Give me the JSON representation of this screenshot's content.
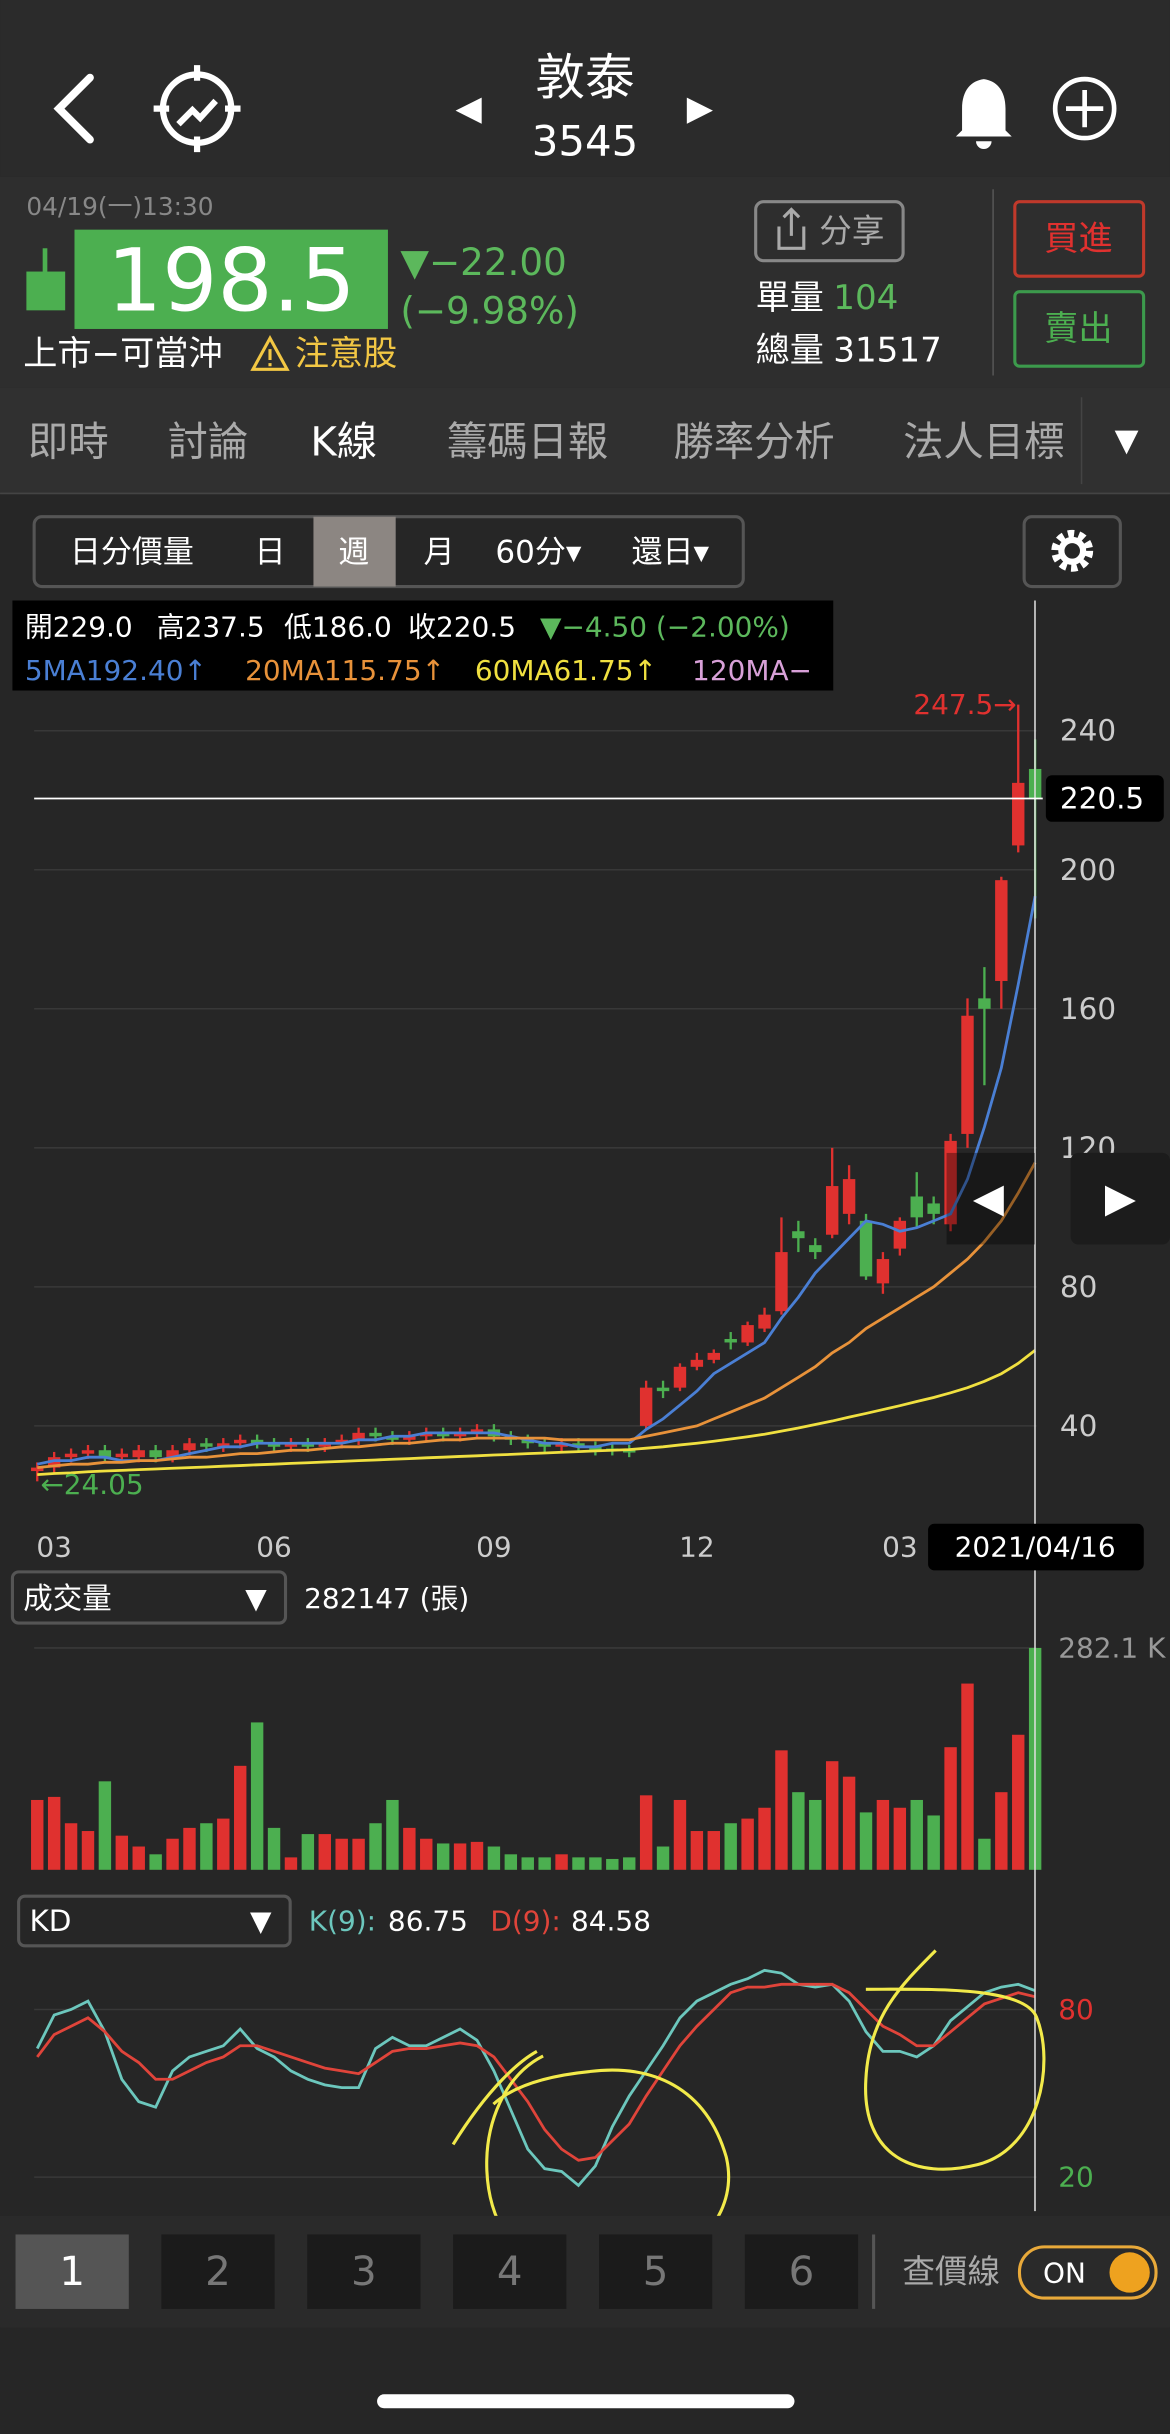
{
  "header": {
    "name": "敦泰",
    "code": "3545"
  },
  "quote": {
    "time": "04/19(一)13:30",
    "price": "198.5",
    "change": "▼−22.00",
    "change_pct": "(−9.98%)",
    "status": "上市−可當沖",
    "warning": "注意股",
    "share": "分享",
    "unit_volume_label": "單量",
    "unit_volume": "104",
    "total_volume_label": "總量",
    "total_volume": "31517",
    "buy": "買進",
    "sell": "賣出"
  },
  "tabs": [
    "即時",
    "討論",
    "K線",
    "籌碼日報",
    "勝率分析",
    "法人目標"
  ],
  "periods": [
    "日分價量",
    "日",
    "週",
    "月",
    "60分▾",
    "還日▾"
  ],
  "ohlc": [
    "開229.0",
    "高237.5",
    "低186.0",
    "收220.5",
    "▼−4.50 (−2.00%)"
  ],
  "chart_data": [
    {
      "type": "candlestick",
      "categories": [
        null,
        "03",
        null,
        null,
        null,
        null,
        null,
        null,
        null,
        null,
        null,
        null,
        null,
        null,
        "06",
        null,
        null,
        null,
        null,
        null,
        null,
        null,
        null,
        null,
        null,
        null,
        null,
        "09",
        null,
        null,
        null,
        null,
        null,
        null,
        null,
        null,
        null,
        null,
        null,
        "12",
        null,
        null,
        null,
        null,
        null,
        null,
        null,
        null,
        null,
        null,
        null,
        "03",
        null,
        null,
        null,
        null,
        null,
        null,
        null,
        "2021/04/16"
      ],
      "open": [
        27,
        28,
        31,
        32,
        33,
        31,
        31,
        33,
        31,
        33,
        35,
        34,
        35,
        36,
        35,
        34,
        35,
        34,
        35,
        36,
        38,
        37,
        36,
        37,
        38,
        37,
        38,
        39,
        37,
        36,
        35,
        34,
        35,
        34,
        33.5,
        33,
        40,
        51,
        51,
        57,
        59,
        65,
        64,
        68,
        73,
        96,
        92,
        95,
        101,
        99,
        81,
        91,
        106,
        104,
        98,
        124,
        163,
        168,
        207,
        229
      ],
      "high": [
        29.5,
        32.5,
        33.5,
        34.5,
        34.5,
        33.5,
        34.5,
        34.5,
        34.5,
        36.5,
        36.5,
        36.5,
        37.5,
        37.5,
        36.5,
        36.5,
        36.5,
        36.5,
        37.5,
        39.5,
        39.5,
        38.5,
        38.5,
        39.5,
        39.5,
        39.5,
        40.5,
        40.5,
        38.5,
        37.5,
        36.5,
        36.5,
        36.5,
        35.5,
        35,
        34.5,
        53,
        53,
        58,
        61,
        62,
        67,
        70,
        74,
        100,
        99,
        94,
        120,
        115,
        101,
        90,
        100,
        113,
        106,
        124,
        163,
        172,
        198,
        247.5,
        237.5
      ],
      "low": [
        24.05,
        26.5,
        29.5,
        30.5,
        29.5,
        29.5,
        29.5,
        29.5,
        29.5,
        31.5,
        32.5,
        32.5,
        33.5,
        33.5,
        32.5,
        32.5,
        32.5,
        32.5,
        33.5,
        34.5,
        35.5,
        34.5,
        34.5,
        35.5,
        35.5,
        35.5,
        36.5,
        35.5,
        34.5,
        33.5,
        32.5,
        32.5,
        32.5,
        31.5,
        31.5,
        31,
        39,
        48,
        50,
        56,
        58,
        62,
        63,
        67,
        72,
        90,
        88,
        94,
        98,
        82,
        78,
        89,
        97,
        98,
        96,
        120,
        138,
        160,
        205,
        186
      ],
      "close": [
        28,
        31,
        32,
        33,
        31,
        32,
        33,
        31,
        33,
        35,
        34,
        35,
        36,
        35,
        34,
        35,
        34,
        35,
        36,
        38,
        37,
        36,
        37,
        38,
        37,
        38,
        39,
        37,
        36,
        35,
        34,
        35,
        34,
        33,
        33,
        32.5,
        51,
        50,
        57,
        59,
        61,
        64,
        69,
        72,
        90,
        94,
        90,
        109,
        111,
        83,
        88,
        99,
        100,
        101,
        122,
        158,
        160,
        197,
        225,
        220.5
      ],
      "up_color": "#e0312f",
      "down_color": "#4caf50",
      "series": [
        {
          "name": "5MA192.40↑",
          "color": "#4a7fd4",
          "values": [
            29,
            30,
            30,
            31,
            31,
            30,
            30,
            30,
            31,
            32,
            33,
            34,
            34,
            35,
            35,
            35,
            35,
            35,
            35,
            36,
            36,
            37,
            37,
            38,
            38,
            38,
            38,
            38,
            37,
            36,
            35,
            35,
            34,
            34,
            35,
            35,
            39,
            42,
            46,
            50,
            55,
            58,
            61,
            64,
            71,
            77,
            84,
            89,
            94,
            99,
            98,
            96,
            97,
            99,
            101,
            111,
            126,
            143,
            167,
            192.4
          ]
        },
        {
          "name": "20MA115.75↑",
          "color": "#e8923a",
          "values": [
            28,
            28.5,
            29,
            29,
            29.5,
            29.5,
            30,
            30,
            30.5,
            31,
            31,
            31.5,
            32,
            32,
            32.5,
            33,
            33,
            33.5,
            34,
            34,
            34.5,
            35,
            35,
            35.5,
            36,
            36,
            36.5,
            36.5,
            36.5,
            36.5,
            36.5,
            36,
            36,
            36,
            36,
            36,
            37,
            38,
            39,
            40,
            42,
            44,
            46,
            48,
            51,
            54,
            57,
            61,
            64,
            68,
            71,
            74,
            77,
            80,
            84,
            88,
            93,
            99,
            107,
            115.75
          ]
        },
        {
          "name": "60MA61.75↑",
          "color": "#f0e040",
          "values": [
            26,
            26.3,
            26.5,
            26.8,
            27,
            27.2,
            27.4,
            27.6,
            27.8,
            28,
            28.2,
            28.4,
            28.6,
            28.8,
            29,
            29.2,
            29.4,
            29.6,
            29.8,
            30,
            30.2,
            30.4,
            30.6,
            30.8,
            31,
            31.2,
            31.4,
            31.6,
            31.8,
            32,
            32.2,
            32.4,
            32.6,
            32.8,
            33,
            33.2,
            33.6,
            34,
            34.5,
            35,
            35.6,
            36.2,
            36.9,
            37.6,
            38.5,
            39.4,
            40.4,
            41.4,
            42.5,
            43.6,
            44.7,
            45.8,
            47,
            48.2,
            49.5,
            51,
            52.8,
            55,
            58,
            61.75
          ]
        },
        {
          "name": "120MA−",
          "color": "#d8a0d8",
          "values": [
            null,
            null,
            null,
            null,
            null,
            null,
            null,
            null,
            null,
            null,
            null,
            null,
            null,
            null,
            null,
            null,
            null,
            null,
            null,
            null,
            null,
            null,
            null,
            null,
            null,
            null,
            null,
            null,
            null,
            null,
            null,
            null,
            null,
            null,
            null,
            null,
            null,
            null,
            null,
            null,
            null,
            null,
            null,
            null,
            null,
            null,
            null,
            null,
            null,
            null,
            null,
            null,
            null,
            null,
            null,
            null,
            null,
            null,
            null,
            null
          ]
        }
      ],
      "last_price": 220.5,
      "high_label": "247.5→",
      "low_label": "←24.05",
      "ylim": [
        10.5,
        253.8
      ],
      "yticks": [
        40,
        80,
        120,
        160,
        200,
        240
      ],
      "grid": true
    },
    {
      "type": "bar",
      "title": "成交量",
      "value_label": "282147 (張)",
      "values": [
        88800,
        92700,
        59200,
        49300,
        112500,
        43400,
        29600,
        19700,
        39500,
        53300,
        59200,
        65100,
        132200,
        187400,
        53300,
        15800,
        45400,
        45400,
        39500,
        39500,
        59200,
        88800,
        53300,
        39500,
        33500,
        33500,
        35500,
        29600,
        19700,
        15800,
        15800,
        19700,
        15800,
        15800,
        13800,
        15800,
        94700,
        29600,
        88800,
        49300,
        49300,
        59200,
        65100,
        78900,
        151900,
        98700,
        88800,
        138100,
        118400,
        73000,
        88800,
        78900,
        88800,
        69100,
        155900,
        236800,
        39500,
        98700,
        171700,
        282147
      ],
      "ylim": [
        0,
        282147
      ],
      "yticks": [
        {
          "value": 282100,
          "label": "282.1 K"
        }
      ],
      "grid": true
    },
    {
      "type": "line",
      "title": "KD",
      "series": [
        {
          "name": "K(9):",
          "color": "#6cc7bd",
          "values": [
            66,
            78,
            80,
            83,
            72,
            55,
            47,
            45,
            58,
            63,
            65,
            67,
            73,
            66,
            63,
            58,
            55,
            53,
            52,
            52,
            66,
            70,
            67,
            67,
            70,
            73,
            69,
            58,
            44,
            30,
            23,
            22,
            17,
            24,
            38,
            49,
            58,
            67,
            77,
            83,
            86,
            89,
            91,
            94,
            93,
            89,
            88,
            89,
            83,
            72,
            65,
            65,
            63,
            67,
            76,
            81,
            86,
            88,
            89,
            86.75
          ]
        },
        {
          "name": "D(9):",
          "color": "#e0443a",
          "values": [
            63,
            71,
            74,
            77,
            72,
            65,
            61,
            55,
            55,
            58,
            61,
            63,
            67,
            67,
            65,
            63,
            61,
            59,
            58,
            57,
            61,
            65,
            66,
            66,
            67,
            68,
            67,
            63,
            55,
            47,
            37,
            30,
            26,
            27,
            33,
            39,
            49,
            58,
            67,
            74,
            80,
            86,
            88,
            88,
            89,
            89,
            89,
            89,
            86,
            80,
            74,
            71,
            67,
            67,
            72,
            77,
            82,
            84,
            86,
            84.58
          ]
        }
      ],
      "ylim": [
        7.8,
        105
      ],
      "yticks": [
        20,
        80
      ],
      "grid": true
    }
  ],
  "pager": {
    "pages": [
      "1",
      "2",
      "3",
      "4",
      "5",
      "6"
    ],
    "price_line": "查價線",
    "toggle": "ON"
  }
}
